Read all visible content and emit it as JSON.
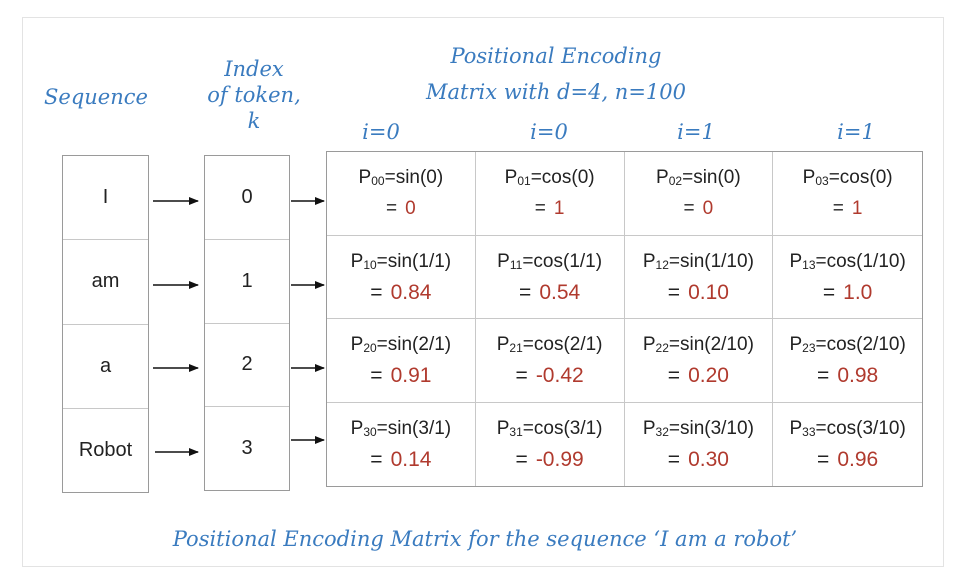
{
  "labels": {
    "sequence": "Sequence",
    "index_line1": "Index",
    "index_line2": "of token,",
    "index_line3": "k",
    "pe_title_line1": "Positional Encoding",
    "pe_title_line2": "Matrix with d=4, n=100",
    "caption": "Positional Encoding Matrix for the sequence ‘I am a robot’"
  },
  "column_headers": [
    "i=0",
    "i=0",
    "i=1",
    "i=1"
  ],
  "tokens": [
    "I",
    "am",
    "a",
    "Robot"
  ],
  "indices": [
    "0",
    "1",
    "2",
    "3"
  ],
  "matrix": [
    [
      {
        "sub": "00",
        "fn": "=sin(0)",
        "val": "0"
      },
      {
        "sub": "01",
        "fn": "=cos(0)",
        "val": "1"
      },
      {
        "sub": "02",
        "fn": "=sin(0)",
        "val": "0"
      },
      {
        "sub": "03",
        "fn": "=cos(0)",
        "val": "1"
      }
    ],
    [
      {
        "sub": "10",
        "fn": "=sin(1/1)",
        "val": "0.84"
      },
      {
        "sub": "11",
        "fn": "=cos(1/1)",
        "val": "0.54"
      },
      {
        "sub": "12",
        "fn": "=sin(1/10)",
        "val": "0.10"
      },
      {
        "sub": "13",
        "fn": "=cos(1/10)",
        "val": "1.0"
      }
    ],
    [
      {
        "sub": "20",
        "fn": "=sin(2/1)",
        "val": "0.91"
      },
      {
        "sub": "21",
        "fn": "=cos(2/1)",
        "val": "-0.42"
      },
      {
        "sub": "22",
        "fn": "=sin(2/10)",
        "val": "0.20"
      },
      {
        "sub": "23",
        "fn": "=cos(2/10)",
        "val": "0.98"
      }
    ],
    [
      {
        "sub": "30",
        "fn": "=sin(3/1)",
        "val": "0.14"
      },
      {
        "sub": "31",
        "fn": "=cos(3/1)",
        "val": "-0.99"
      },
      {
        "sub": "32",
        "fn": "=sin(3/10)",
        "val": "0.30"
      },
      {
        "sub": "33",
        "fn": "=cos(3/10)",
        "val": "0.96"
      }
    ]
  ],
  "colors": {
    "handwriting": "#3a7bbf",
    "value": "#b03a2e",
    "border": "#9a9a9a"
  }
}
